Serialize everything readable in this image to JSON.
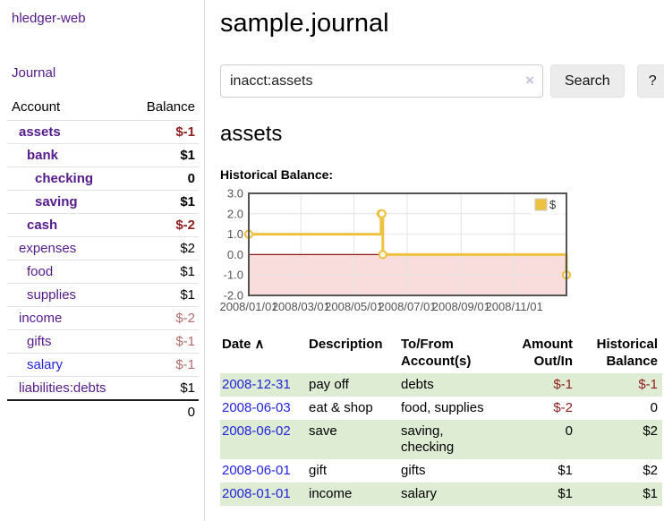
{
  "sidebar": {
    "app_title": "hledger-web",
    "nav_journal": "Journal",
    "accounts_header": {
      "account": "Account",
      "balance": "Balance"
    },
    "accounts": [
      {
        "name": "assets",
        "depth": 1,
        "balance": "$-1",
        "bold": true,
        "negative": "strong"
      },
      {
        "name": "bank",
        "depth": 2,
        "balance": "$1",
        "bold": true
      },
      {
        "name": "checking",
        "depth": 3,
        "balance": "0",
        "bold": true
      },
      {
        "name": "saving",
        "depth": 3,
        "balance": "$1",
        "bold": true
      },
      {
        "name": "cash",
        "depth": 2,
        "balance": "$-2",
        "bold": true,
        "negative": "strong"
      },
      {
        "name": "expenses",
        "depth": 1,
        "balance": "$2"
      },
      {
        "name": "food",
        "depth": 2,
        "balance": "$1"
      },
      {
        "name": "supplies",
        "depth": 2,
        "balance": "$1"
      },
      {
        "name": "income",
        "depth": 1,
        "balance": "$-2",
        "negative": "soft"
      },
      {
        "name": "gifts",
        "depth": 2,
        "balance": "$-1",
        "negative": "soft"
      },
      {
        "name": "salary",
        "depth": 2,
        "balance": "$-1",
        "negative": "soft",
        "link_style": "unvisited"
      },
      {
        "name": "liabilities:debts",
        "depth": 1,
        "balance": "$1"
      }
    ],
    "total": "0"
  },
  "main": {
    "title": "sample.journal",
    "search": {
      "value": "inacct:assets",
      "clear_icon": "×",
      "button_label": "Search",
      "help_label": "?"
    },
    "account_heading": "assets",
    "chart_label": "Historical Balance:"
  },
  "chart_data": {
    "type": "line",
    "style": "step",
    "title": "Historical Balance",
    "series": [
      {
        "name": "$",
        "points": [
          [
            "2008-01-01",
            1
          ],
          [
            "2008-06-01",
            2
          ],
          [
            "2008-06-02",
            2
          ],
          [
            "2008-06-03",
            0
          ],
          [
            "2008-12-31",
            -1
          ]
        ]
      }
    ],
    "x_range": [
      "2008-01-01",
      "2008-12-31"
    ],
    "ylim": [
      -2,
      3
    ],
    "yticks": [
      "3.0",
      "2.0",
      "1.0",
      "0.0",
      "-1.0",
      "-2.0"
    ],
    "xticks": [
      "2008/01/01",
      "2008/03/01",
      "2008/05/01",
      "2008/07/01",
      "2008/09/01",
      "2008/11/01"
    ],
    "legend": "$",
    "legend_position": "top-right",
    "grid": true,
    "line_color": "#edc240",
    "marker_fill": "#ffffff",
    "zero_line_color": "#8b1a1a",
    "negative_region_color": "#f9dcdc",
    "grid_color": "#e4e4e4",
    "border_color": "#545454",
    "tick_color": "#545454"
  },
  "register": {
    "columns": [
      {
        "label": "Date"
      },
      {
        "label": "Description"
      },
      {
        "label": "To/From Account(s)"
      },
      {
        "label": "Amount Out/In"
      },
      {
        "label": "Historical Balance"
      }
    ],
    "sort_indicator": "∧",
    "rows": [
      {
        "date": "2008-12-31",
        "description": "pay off",
        "accounts": "debts",
        "amount": "$-1",
        "amount_negative": true,
        "balance": "$-1",
        "balance_negative": true
      },
      {
        "date": "2008-06-03",
        "description": "eat & shop",
        "accounts": "food, supplies",
        "amount": "$-2",
        "amount_negative": true,
        "balance": "0",
        "balance_negative": false
      },
      {
        "date": "2008-06-02",
        "description": "save",
        "accounts": "saving, checking",
        "amount": "0",
        "amount_negative": false,
        "balance": "$2",
        "balance_negative": false
      },
      {
        "date": "2008-06-01",
        "description": "gift",
        "accounts": "gifts",
        "amount": "$1",
        "amount_negative": false,
        "balance": "$2",
        "balance_negative": false
      },
      {
        "date": "2008-01-01",
        "description": "income",
        "accounts": "salary",
        "amount": "$1",
        "amount_negative": false,
        "balance": "$1",
        "balance_negative": false
      }
    ]
  }
}
